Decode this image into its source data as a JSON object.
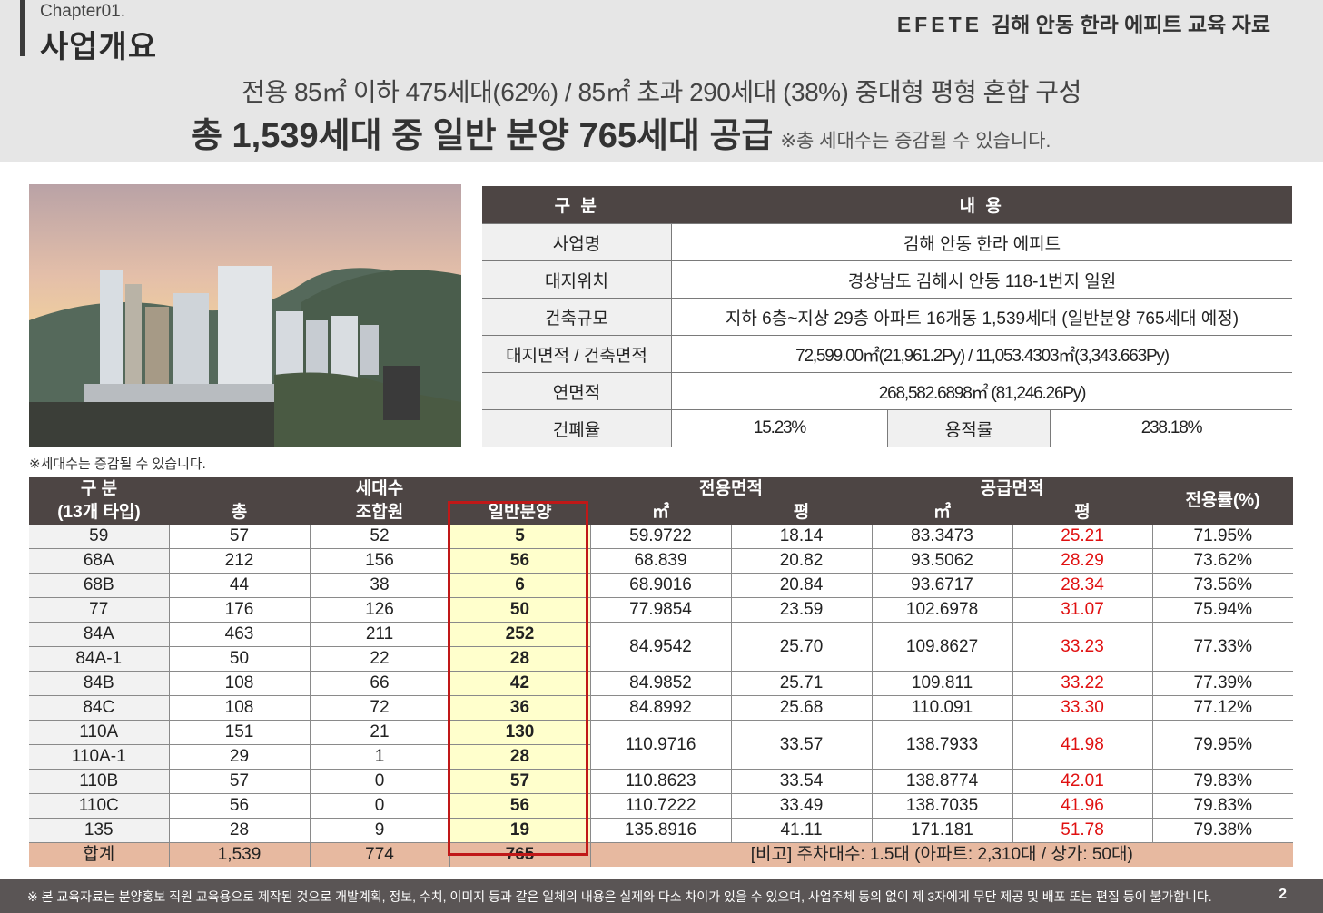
{
  "header": {
    "chapter": "Chapter01.",
    "title": "사업개요",
    "brand_logo": "EFETE",
    "brand_text": "김해 안동 한라 에피트 교육 자료",
    "subtitle": "전용 85㎡ 이하 475세대(62%) / 85㎡ 초과 290세대 (38%) 중대형 평형 혼합 구성",
    "headline": "총 1,539세대 중 일반 분양 765세대 공급",
    "headline_note": "※총 세대수는 증감될 수 있습니다."
  },
  "photo_note": "※세대수는 증감될 수 있습니다.",
  "info_table": {
    "col1": "구 분",
    "col2": "내 용",
    "rows": [
      {
        "label": "사업명",
        "value": "김해 안동 한라 에피트"
      },
      {
        "label": "대지위치",
        "value": "경상남도 김해시 안동 118-1번지 일원"
      },
      {
        "label": "건축규모",
        "value": "지하 6층~지상 29층 아파트 16개동 1,539세대 (일반분양 765세대 예정)"
      },
      {
        "label": "대지면적 / 건축면적",
        "value": "72,599.00㎡(21,961.2Py) / 11,053.4303㎡(3,343.663Py)"
      },
      {
        "label": "연면적",
        "value": "268,582.6898㎡ (81,246.26Py)"
      }
    ],
    "coverage_label": "건폐율",
    "coverage_value": "15.23%",
    "far_label": "용적률",
    "far_value": "238.18%"
  },
  "main_table": {
    "h_type": "구 분",
    "h_type2": "(13개 타입)",
    "h_units": "세대수",
    "h_total": "총",
    "h_union": "조합원",
    "h_sale": "일반분양",
    "h_excl": "전용면적",
    "h_supply": "공급면적",
    "h_m2": "㎡",
    "h_py": "평",
    "h_ratio": "전용률(%)",
    "rows": [
      {
        "type": "59",
        "total": "57",
        "union": "52",
        "sale": "5",
        "em2": "59.9722",
        "epy": "18.14",
        "sm2": "83.3473",
        "spy": "25.21",
        "ratio": "71.95%"
      },
      {
        "type": "68A",
        "total": "212",
        "union": "156",
        "sale": "56",
        "em2": "68.839",
        "epy": "20.82",
        "sm2": "93.5062",
        "spy": "28.29",
        "ratio": "73.62%"
      },
      {
        "type": "68B",
        "total": "44",
        "union": "38",
        "sale": "6",
        "em2": "68.9016",
        "epy": "20.84",
        "sm2": "93.6717",
        "spy": "28.34",
        "ratio": "73.56%"
      },
      {
        "type": "77",
        "total": "176",
        "union": "126",
        "sale": "50",
        "em2": "77.9854",
        "epy": "23.59",
        "sm2": "102.6978",
        "spy": "31.07",
        "ratio": "75.94%"
      },
      {
        "type": "84A",
        "total": "463",
        "union": "211",
        "sale": "252",
        "em2": "84.9542",
        "epy": "25.70",
        "sm2": "109.8627",
        "spy": "33.23",
        "ratio": "77.33%"
      },
      {
        "type": "84A-1",
        "total": "50",
        "union": "22",
        "sale": "28"
      },
      {
        "type": "84B",
        "total": "108",
        "union": "66",
        "sale": "42",
        "em2": "84.9852",
        "epy": "25.71",
        "sm2": "109.811",
        "spy": "33.22",
        "ratio": "77.39%"
      },
      {
        "type": "84C",
        "total": "108",
        "union": "72",
        "sale": "36",
        "em2": "84.8992",
        "epy": "25.68",
        "sm2": "110.091",
        "spy": "33.30",
        "ratio": "77.12%"
      },
      {
        "type": "110A",
        "total": "151",
        "union": "21",
        "sale": "130",
        "em2": "110.9716",
        "epy": "33.57",
        "sm2": "138.7933",
        "spy": "41.98",
        "ratio": "79.95%"
      },
      {
        "type": "110A-1",
        "total": "29",
        "union": "1",
        "sale": "28"
      },
      {
        "type": "110B",
        "total": "57",
        "union": "0",
        "sale": "57",
        "em2": "110.8623",
        "epy": "33.54",
        "sm2": "138.8774",
        "spy": "42.01",
        "ratio": "79.83%"
      },
      {
        "type": "110C",
        "total": "56",
        "union": "0",
        "sale": "56",
        "em2": "110.7222",
        "epy": "33.49",
        "sm2": "138.7035",
        "spy": "41.96",
        "ratio": "79.83%"
      },
      {
        "type": "135",
        "total": "28",
        "union": "9",
        "sale": "19",
        "em2": "135.8916",
        "epy": "41.11",
        "sm2": "171.181",
        "spy": "51.78",
        "ratio": "79.38%"
      }
    ],
    "total_row": {
      "label": "합계",
      "total": "1,539",
      "union": "774",
      "sale": "765",
      "remark": "[비고] 주차대수: 1.5대 (아파트: 2,310대 / 상가: 50대)"
    }
  },
  "footer": {
    "disclaimer": "※ 본 교육자료는 분양홍보 직원 교육용으로 제작된 것으로 개발계획, 정보, 수치, 이미지 등과 같은 일체의 내용은 실제와 다소 차이가 있을 수 있으며, 사업주체 동의 없이 제 3자에게 무단 제공 및 배포 또는 편집 등이 불가합니다.",
    "page": "2"
  },
  "colors": {
    "header_bg": "#e6e6e6",
    "table_header": "#4d4544",
    "sale_bg": "#ffffcc",
    "red": "#e01010",
    "total_bg": "#e7b9a0",
    "footer_bg": "#5a5555"
  }
}
